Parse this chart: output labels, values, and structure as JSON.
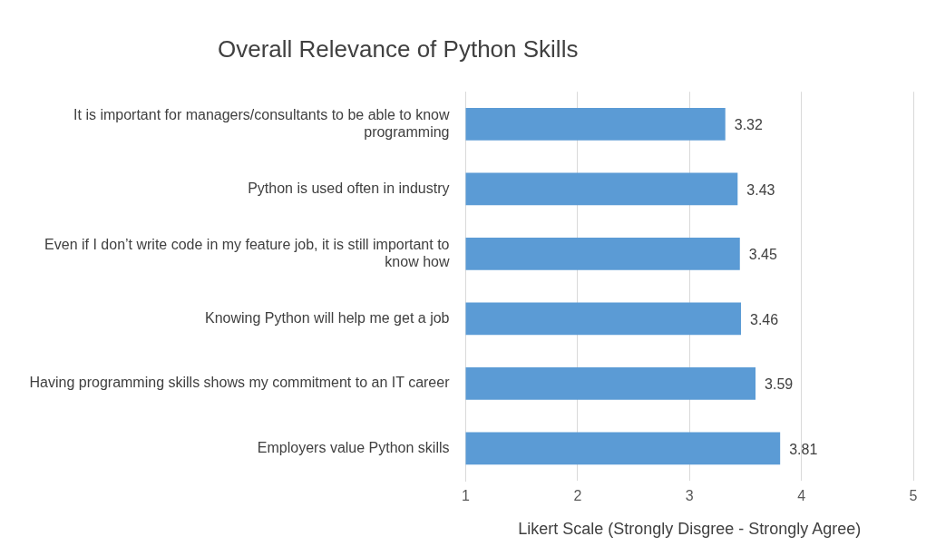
{
  "chart_data": {
    "type": "bar",
    "orientation": "horizontal",
    "title": "Overall Relevance of Python Skills",
    "xlabel": "Likert Scale (Strongly Disgree - Strongly Agree)",
    "categories": [
      "It is important for managers/consultants to be able to know programming",
      "Python is used often in industry",
      "Even if I don’t write code in my feature job, it is still important to know how",
      "Knowing Python will help me get a job",
      "Having programming skills shows my commitment to an IT career",
      "Employers value Python skills"
    ],
    "values": [
      3.32,
      3.43,
      3.45,
      3.46,
      3.59,
      3.81
    ],
    "color": "#5b9bd5",
    "xlim": [
      1,
      5
    ],
    "xticks": [
      1,
      2,
      3,
      4,
      5
    ],
    "grid": "x",
    "data_labels": true,
    "legend": false
  }
}
